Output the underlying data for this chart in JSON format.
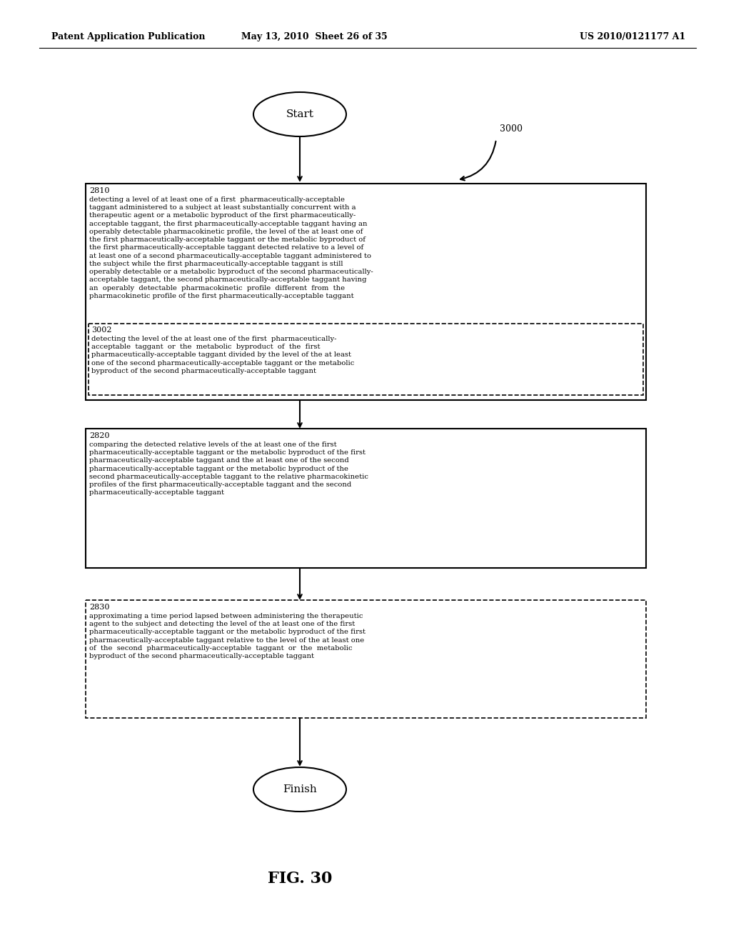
{
  "header_left": "Patent Application Publication",
  "header_center": "May 13, 2010  Sheet 26 of 35",
  "header_right": "US 2010/0121177 A1",
  "figure_label": "FIG. 30",
  "annotation_3000": "3000",
  "start_label": "Start",
  "finish_label": "Finish",
  "box2810_label": "2810",
  "box2810_text": "detecting a level of at least one of a first  pharmaceutically-acceptable\ntaggant administered to a subject at least substantially concurrent with a\ntherapeutic agent or a metabolic byproduct of the first pharmaceutically-\nacceptable taggant, the first pharmaceutically-acceptable taggant having an\noperably detectable pharmacokinetic profile, the level of the at least one of\nthe first pharmaceutically-acceptable taggant or the metabolic byproduct of\nthe first pharmaceutically-acceptable taggant detected relative to a level of\nat least one of a second pharmaceutically-acceptable taggant administered to\nthe subject while the first pharmaceutically-acceptable taggant is still\noperably detectable or a metabolic byproduct of the second pharmaceutically-\nacceptable taggant, the second pharmaceutically-acceptable taggant having\nan  operably  detectable  pharmacokinetic  profile  different  from  the\npharmacokinetic profile of the first pharmaceutically-acceptable taggant",
  "box3002_label": "3002",
  "box3002_text": "detecting the level of the at least one of the first  pharmaceutically-\nacceptable  taggant  or  the  metabolic  byproduct  of  the  first\npharmaceutically-acceptable taggant divided by the level of the at least\none of the second pharmaceutically-acceptable taggant or the metabolic\nbyproduct of the second pharmaceutically-acceptable taggant",
  "box2820_label": "2820",
  "box2820_text": "comparing the detected relative levels of the at least one of the first\npharmaceutically-acceptable taggant or the metabolic byproduct of the first\npharmaceutically-acceptable taggant and the at least one of the second\npharmaceutically-acceptable taggant or the metabolic byproduct of the\nsecond pharmaceutically-acceptable taggant to the relative pharmacokinetic\nprofiles of the first pharmaceutically-acceptable taggant and the second\npharmaceutically-acceptable taggant",
  "box2830_label": "2830",
  "box2830_text": "approximating a time period lapsed between administering the therapeutic\nagent to the subject and detecting the level of the at least one of the first\npharmaceutically-acceptable taggant or the metabolic byproduct of the first\npharmaceutically-acceptable taggant relative to the level of the at least one\nof  the  second  pharmaceutically-acceptable  taggant  or  the  metabolic\nbyproduct of the second pharmaceutically-acceptable taggant",
  "bg_color": "#ffffff",
  "text_color": "#000000"
}
